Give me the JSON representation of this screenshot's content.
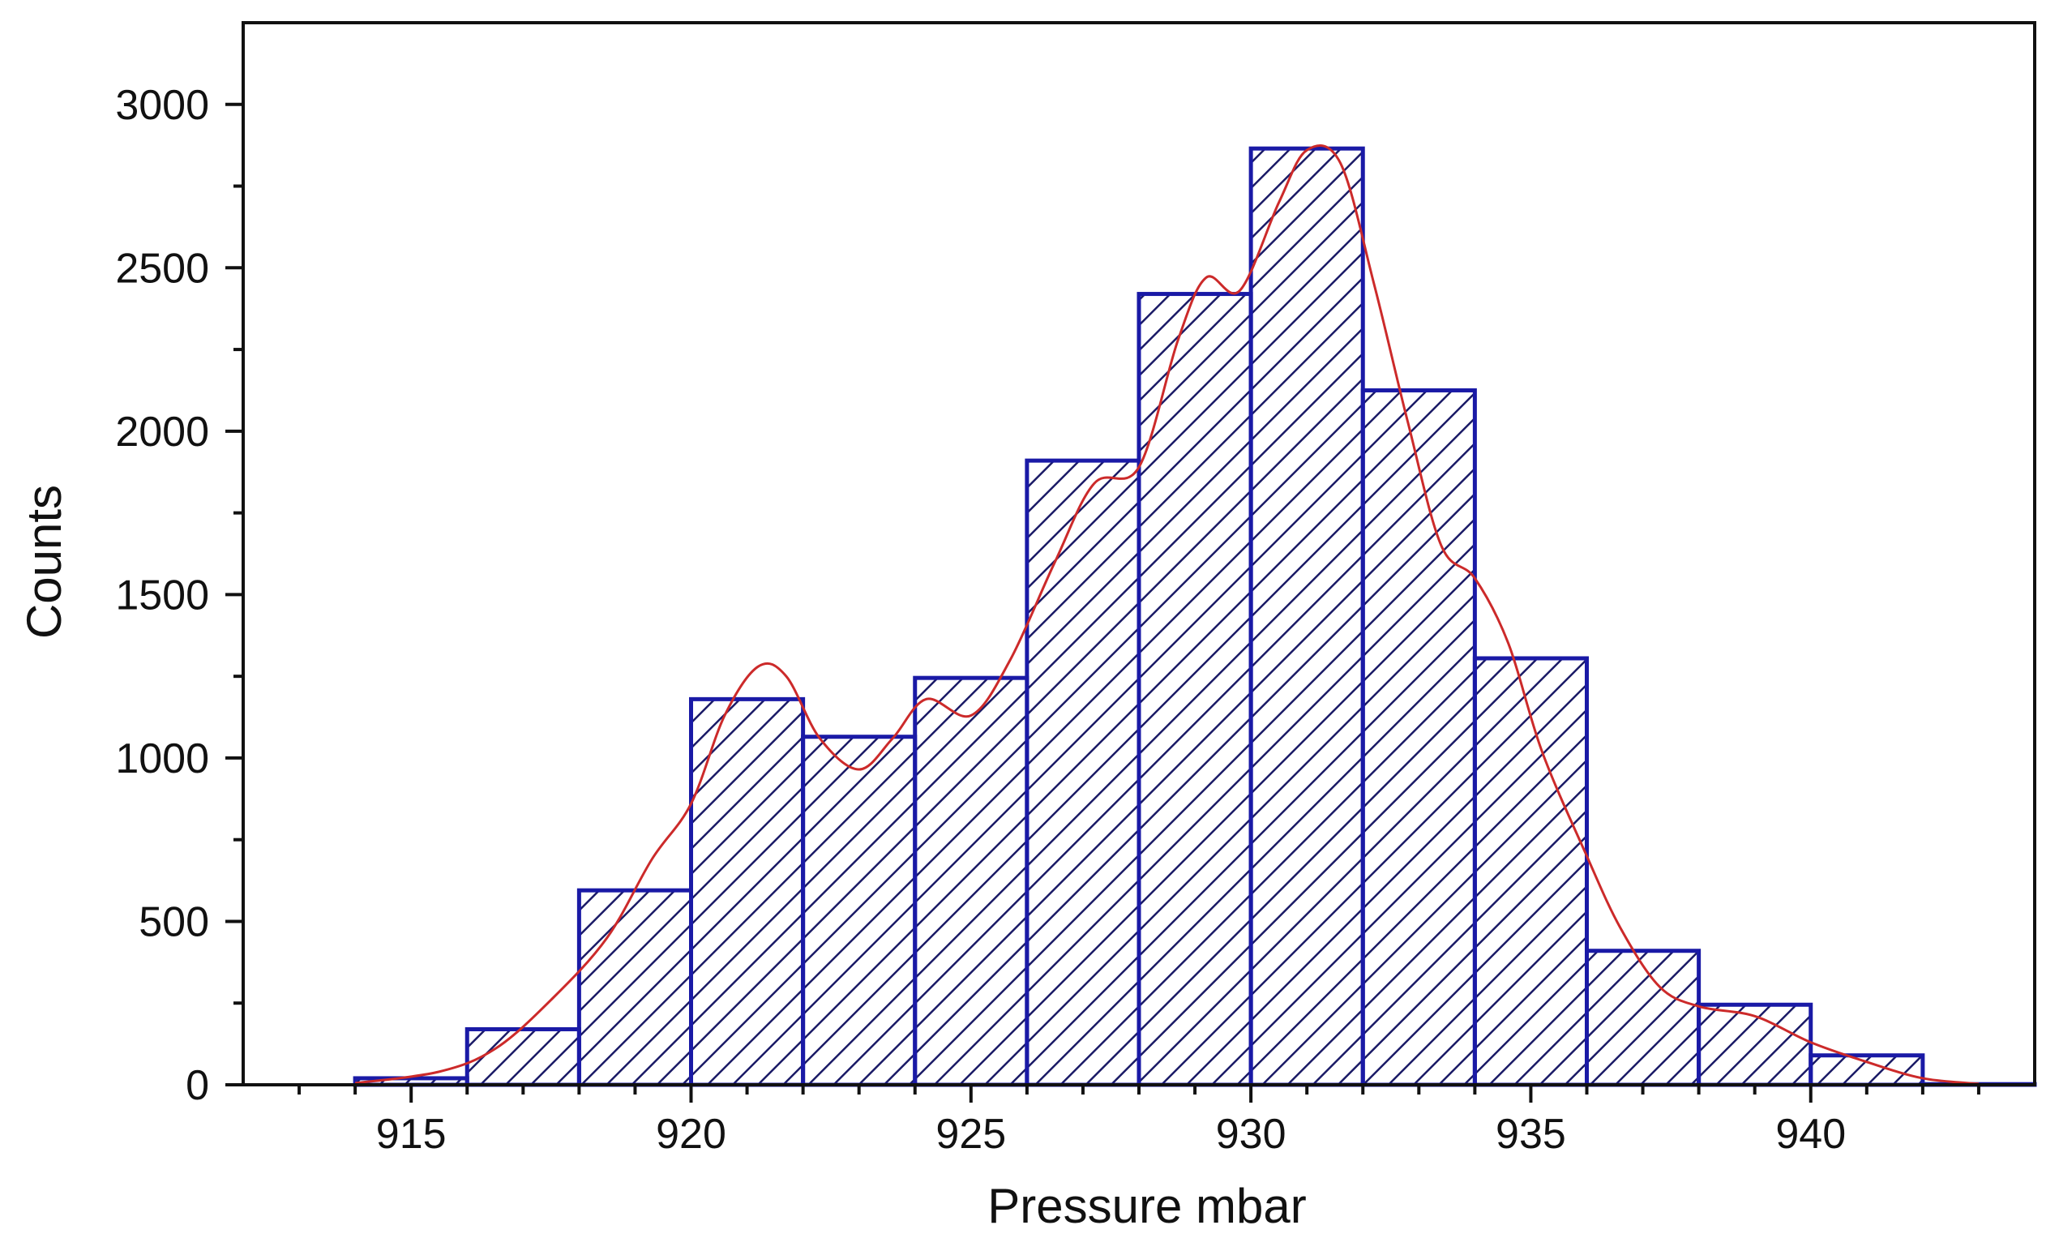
{
  "chart_data": {
    "type": "histogram",
    "title": "",
    "xlabel": "Pressure mbar",
    "ylabel": "Counts",
    "xlim": [
      912,
      944
    ],
    "ylim": [
      0,
      3250
    ],
    "x_ticks": [
      915,
      920,
      925,
      930,
      935,
      940
    ],
    "y_ticks": [
      0,
      500,
      1000,
      1500,
      2000,
      2500,
      3000
    ],
    "bin_width": 2,
    "bins": [
      {
        "start": 914,
        "end": 916,
        "count": 20
      },
      {
        "start": 916,
        "end": 918,
        "count": 170
      },
      {
        "start": 918,
        "end": 920,
        "count": 595
      },
      {
        "start": 920,
        "end": 922,
        "count": 1180
      },
      {
        "start": 922,
        "end": 924,
        "count": 1065
      },
      {
        "start": 924,
        "end": 926,
        "count": 1245
      },
      {
        "start": 926,
        "end": 928,
        "count": 1910
      },
      {
        "start": 928,
        "end": 930,
        "count": 2420
      },
      {
        "start": 930,
        "end": 932,
        "count": 2865
      },
      {
        "start": 932,
        "end": 934,
        "count": 2125
      },
      {
        "start": 934,
        "end": 936,
        "count": 1305
      },
      {
        "start": 936,
        "end": 938,
        "count": 410
      },
      {
        "start": 938,
        "end": 940,
        "count": 245
      },
      {
        "start": 940,
        "end": 942,
        "count": 90
      },
      {
        "start": 942,
        "end": 944,
        "count": 2
      }
    ],
    "fit_curve": {
      "color": "#cc2a2a",
      "points": [
        [
          914.0,
          5
        ],
        [
          915.5,
          40
        ],
        [
          916.5,
          110
        ],
        [
          917.5,
          260
        ],
        [
          918.5,
          450
        ],
        [
          919.3,
          690
        ],
        [
          920.0,
          860
        ],
        [
          920.6,
          1130
        ],
        [
          921.2,
          1280
        ],
        [
          921.7,
          1250
        ],
        [
          922.3,
          1060
        ],
        [
          923.0,
          965
        ],
        [
          923.6,
          1060
        ],
        [
          924.2,
          1180
        ],
        [
          925.0,
          1130
        ],
        [
          925.7,
          1300
        ],
        [
          926.5,
          1600
        ],
        [
          927.2,
          1840
        ],
        [
          928.0,
          1890
        ],
        [
          928.7,
          2280
        ],
        [
          929.2,
          2470
        ],
        [
          929.8,
          2430
        ],
        [
          930.5,
          2700
        ],
        [
          931.0,
          2860
        ],
        [
          931.6,
          2820
        ],
        [
          932.2,
          2450
        ],
        [
          932.8,
          2030
        ],
        [
          933.4,
          1650
        ],
        [
          934.0,
          1550
        ],
        [
          934.6,
          1350
        ],
        [
          935.2,
          1020
        ],
        [
          936.0,
          700
        ],
        [
          936.6,
          480
        ],
        [
          937.3,
          300
        ],
        [
          938.0,
          240
        ],
        [
          939.0,
          210
        ],
        [
          940.0,
          130
        ],
        [
          941.0,
          70
        ],
        [
          942.0,
          20
        ],
        [
          943.0,
          3
        ]
      ]
    },
    "colors": {
      "bar_stroke": "#1a1aa6",
      "hatch": "#1a1a66",
      "axis": "#111111"
    }
  }
}
